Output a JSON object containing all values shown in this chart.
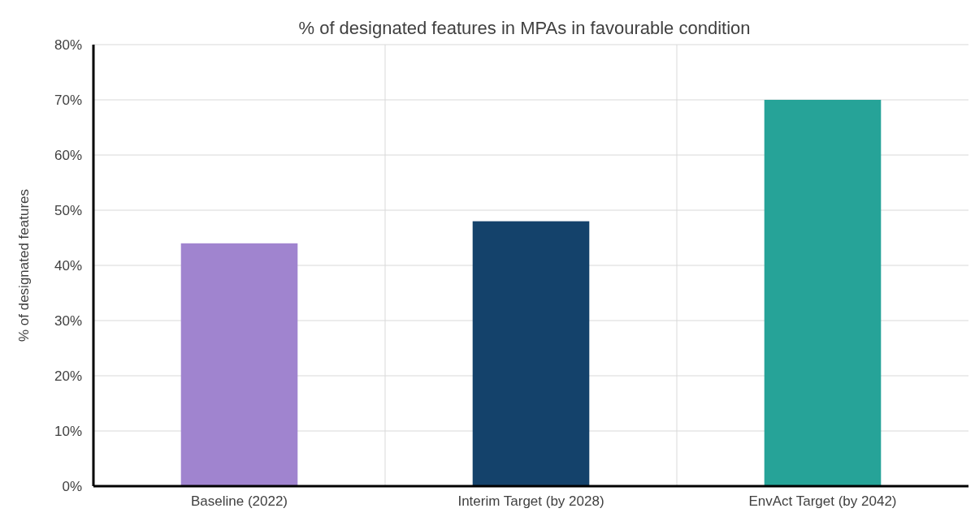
{
  "chart_data": {
    "type": "bar",
    "title": "% of designated features in MPAs in  favourable  condition",
    "ylabel": "% of designated features",
    "categories": [
      "Baseline (2022)",
      "Interim Target (by 2028)",
      "EnvAct Target (by 2042)"
    ],
    "values": [
      44,
      48,
      70
    ],
    "colors": [
      "#a084cf",
      "#14426b",
      "#26a398"
    ],
    "ylim": [
      0,
      80
    ],
    "yticks": [
      {
        "value": 0,
        "label": "0%"
      },
      {
        "value": 10,
        "label": "10%"
      },
      {
        "value": 20,
        "label": "20%"
      },
      {
        "value": 30,
        "label": "30%"
      },
      {
        "value": 40,
        "label": "40%"
      },
      {
        "value": 50,
        "label": "50%"
      },
      {
        "value": 60,
        "label": "60%"
      },
      {
        "value": 70,
        "label": "70%"
      },
      {
        "value": 80,
        "label": "80%"
      }
    ],
    "grid": true
  }
}
